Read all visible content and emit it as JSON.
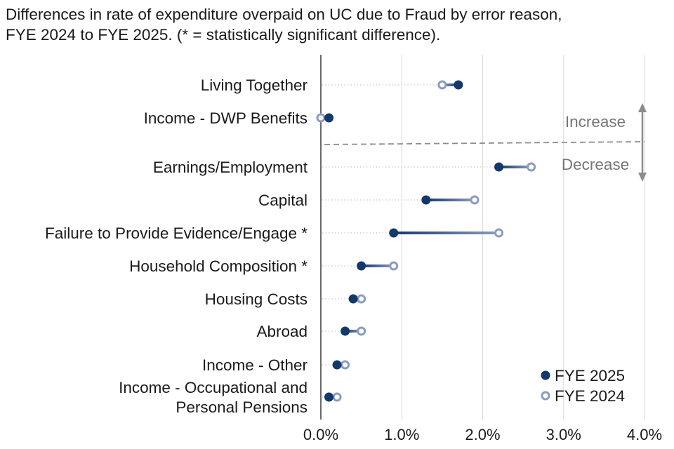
{
  "title_lines": [
    "Differences in rate of expenditure overpaid on UC due to Fraud by error reason,",
    "FYE 2024 to FYE 2025. (* = statistically significant difference)."
  ],
  "chart_data": {
    "type": "dumbbell",
    "title": "Differences in rate of expenditure overpaid on UC due to Fraud by error reason, FYE 2024 to FYE 2025. (* = statistically significant difference).",
    "x_unit": "percent",
    "xlim": [
      0,
      4
    ],
    "xticks": [
      "0.0%",
      "1.0%",
      "2.0%",
      "3.0%",
      "4.0%"
    ],
    "grid": "vertical",
    "legend_position": "bottom-right",
    "series": [
      {
        "name": "FYE 2025",
        "color": "#13386b",
        "marker": "filled-circle"
      },
      {
        "name": "FYE 2024",
        "color": "#8a9cc2",
        "marker": "open-circle"
      }
    ],
    "groups": {
      "increase": {
        "label": "Increase"
      },
      "decrease": {
        "label": "Decrease"
      }
    },
    "categories": [
      {
        "label": [
          "Living Together"
        ],
        "fye2025": 1.7,
        "fye2024": 1.5,
        "group": "increase"
      },
      {
        "label": [
          "Income - DWP Benefits"
        ],
        "fye2025": 0.1,
        "fye2024": 0.0,
        "group": "increase"
      },
      {
        "label": [
          "Earnings/Employment"
        ],
        "fye2025": 2.2,
        "fye2024": 2.6,
        "group": "decrease"
      },
      {
        "label": [
          "Capital"
        ],
        "fye2025": 1.3,
        "fye2024": 1.9,
        "group": "decrease"
      },
      {
        "label": [
          "Failure to Provide Evidence/Engage *"
        ],
        "fye2025": 0.9,
        "fye2024": 2.2,
        "group": "decrease"
      },
      {
        "label": [
          "Household Composition *"
        ],
        "fye2025": 0.5,
        "fye2024": 0.9,
        "group": "decrease"
      },
      {
        "label": [
          "Housing Costs"
        ],
        "fye2025": 0.4,
        "fye2024": 0.5,
        "group": "decrease"
      },
      {
        "label": [
          "Abroad"
        ],
        "fye2025": 0.3,
        "fye2024": 0.5,
        "group": "decrease"
      },
      {
        "label": [
          "Income - Other"
        ],
        "fye2025": 0.2,
        "fye2024": 0.3,
        "group": "decrease"
      },
      {
        "label": [
          "Income - Occupational and",
          "Personal Pensions"
        ],
        "fye2025": 0.1,
        "fye2024": 0.2,
        "group": "decrease"
      }
    ]
  }
}
